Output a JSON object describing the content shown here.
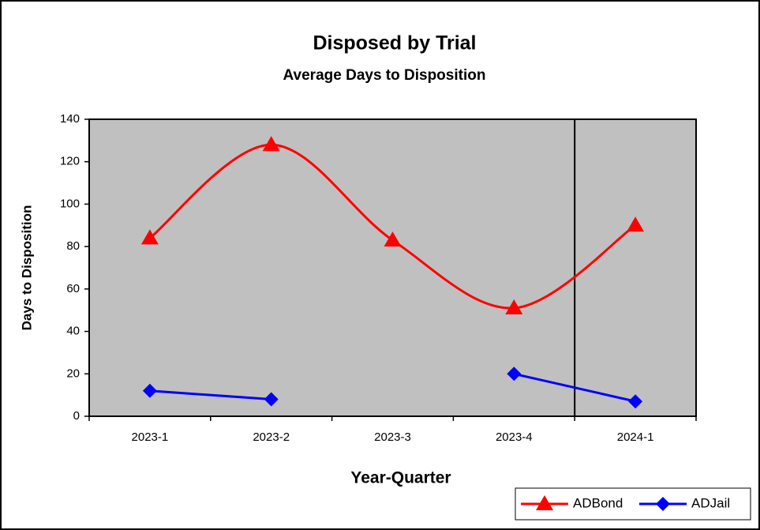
{
  "chart_data": {
    "type": "line",
    "title": "Disposed by Trial",
    "subtitle": "Average Days to Disposition",
    "x_label": "Year-Quarter",
    "y_label": "Days to Disposition",
    "categories": [
      "2023-1",
      "2023-2",
      "2023-3",
      "2023-4",
      "2024-1"
    ],
    "series": [
      {
        "name": "ADBond",
        "color": "#ff0000",
        "marker": "triangle",
        "smooth": true,
        "values": [
          84,
          128,
          83,
          51,
          90
        ]
      },
      {
        "name": "ADJail",
        "color": "#0000ff",
        "marker": "diamond",
        "smooth": false,
        "values": [
          12,
          8,
          null,
          20,
          7
        ]
      }
    ],
    "ylim": [
      0,
      140
    ],
    "yticks": [
      0,
      20,
      40,
      60,
      80,
      100,
      120,
      140
    ],
    "plot_background": "#c0c0c0",
    "legend": "bottom-right"
  }
}
